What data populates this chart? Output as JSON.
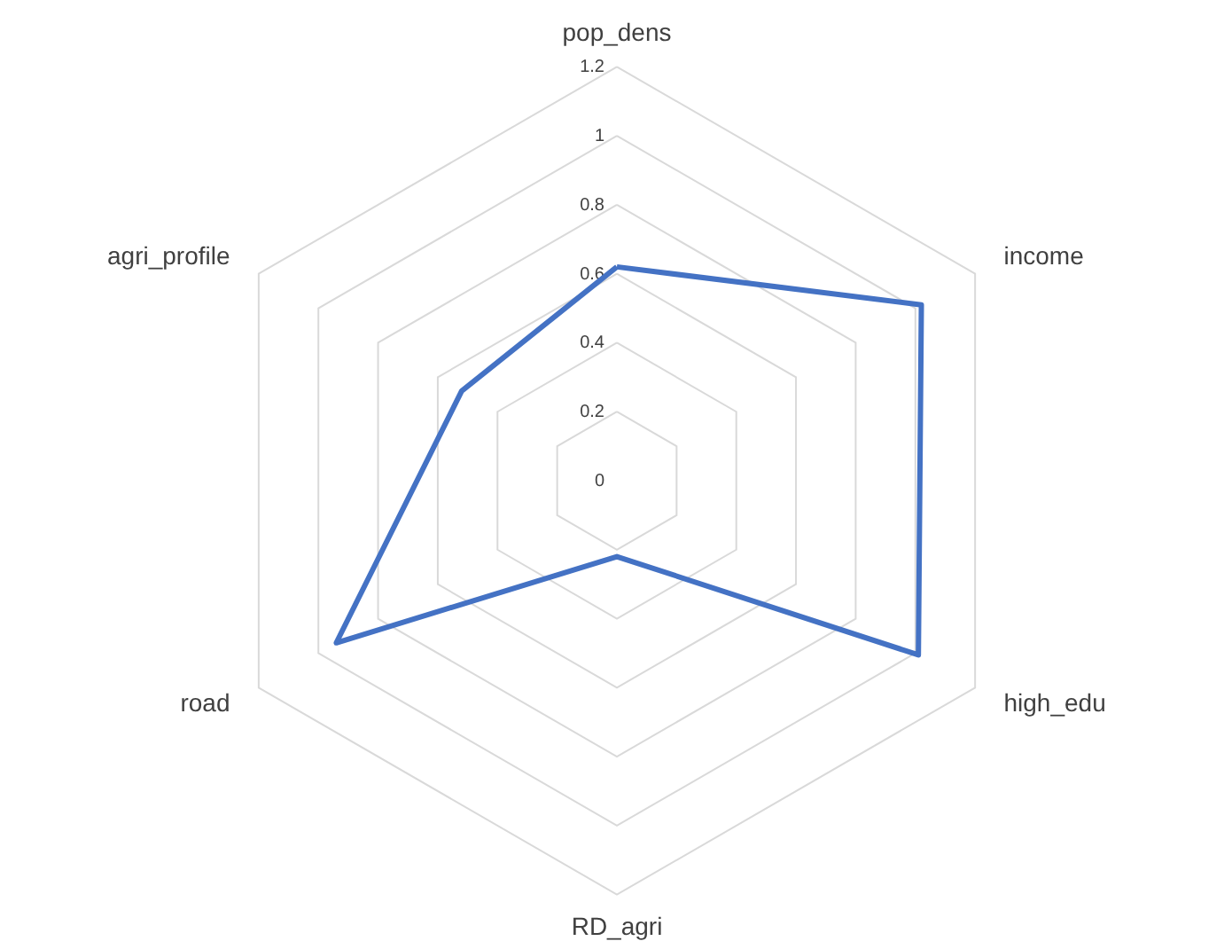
{
  "chart_data": {
    "type": "radar",
    "categories": [
      "pop_dens",
      "income",
      "high_edu",
      "RD_agri",
      "road",
      "agri_profile"
    ],
    "series": [
      {
        "color": "#4472c4",
        "values": [
          0.62,
          1.02,
          1.01,
          0.22,
          0.94,
          0.52
        ]
      }
    ],
    "ylim": [
      0,
      1.2
    ],
    "yticks": [
      0,
      0.2,
      0.4,
      0.6,
      0.8,
      1,
      1.2
    ],
    "grid": true,
    "line_style": "solid",
    "marker": "none"
  }
}
